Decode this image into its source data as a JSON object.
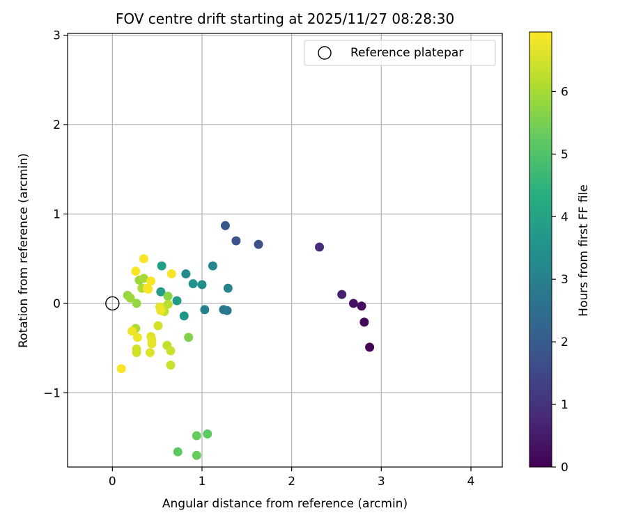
{
  "chart_data": {
    "type": "scatter",
    "title": "FOV centre drift starting at 2025/11/27 08:28:30",
    "xlabel": "Angular distance from reference (arcmin)",
    "ylabel": "Rotation from reference (arcmin)",
    "xlim": [
      -0.5,
      4.35
    ],
    "ylim": [
      -1.83,
      3.02
    ],
    "xticks": [
      0,
      1,
      2,
      3,
      4
    ],
    "xtick_labels": [
      "0",
      "1",
      "2",
      "3",
      "4"
    ],
    "yticks": [
      -1,
      0,
      1,
      2,
      3
    ],
    "ytick_labels": [
      "−1",
      "0",
      "1",
      "2",
      "3"
    ],
    "grid": true,
    "legend": {
      "label": "Reference platepar",
      "placement": "top-right"
    },
    "reference_point": {
      "x": 0,
      "y": 0
    },
    "colorbar": {
      "label": "Hours from first FF file",
      "colormap": "viridis",
      "range": [
        0,
        6.95
      ],
      "ticks": [
        0,
        1,
        2,
        3,
        4,
        5,
        6
      ],
      "tick_labels": [
        "0",
        "1",
        "2",
        "3",
        "4",
        "5",
        "6"
      ]
    },
    "points": [
      {
        "x": 2.87,
        "y": -0.49,
        "c": 0.05
      },
      {
        "x": 2.81,
        "y": -0.21,
        "c": 0.15
      },
      {
        "x": 2.78,
        "y": -0.03,
        "c": 0.25
      },
      {
        "x": 2.69,
        "y": 0.0,
        "c": 0.35
      },
      {
        "x": 2.56,
        "y": 0.1,
        "c": 0.6
      },
      {
        "x": 2.31,
        "y": 0.63,
        "c": 0.9
      },
      {
        "x": 1.63,
        "y": 0.66,
        "c": 1.7
      },
      {
        "x": 1.38,
        "y": 0.7,
        "c": 1.8
      },
      {
        "x": 1.26,
        "y": 0.87,
        "c": 1.9
      },
      {
        "x": 1.28,
        "y": -0.08,
        "c": 2.7
      },
      {
        "x": 1.24,
        "y": -0.07,
        "c": 2.8
      },
      {
        "x": 1.03,
        "y": -0.07,
        "c": 3.0
      },
      {
        "x": 1.29,
        "y": 0.17,
        "c": 3.1
      },
      {
        "x": 1.12,
        "y": 0.42,
        "c": 3.2
      },
      {
        "x": 1.0,
        "y": 0.21,
        "c": 3.4
      },
      {
        "x": 0.82,
        "y": 0.33,
        "c": 3.3
      },
      {
        "x": 0.9,
        "y": 0.22,
        "c": 3.5
      },
      {
        "x": 0.8,
        "y": -0.14,
        "c": 3.6
      },
      {
        "x": 0.72,
        "y": 0.03,
        "c": 3.7
      },
      {
        "x": 0.54,
        "y": 0.13,
        "c": 3.8
      },
      {
        "x": 0.55,
        "y": 0.42,
        "c": 3.9
      },
      {
        "x": 0.73,
        "y": -1.66,
        "c": 5.2
      },
      {
        "x": 0.94,
        "y": -1.7,
        "c": 5.3
      },
      {
        "x": 1.06,
        "y": -1.46,
        "c": 5.2
      },
      {
        "x": 0.94,
        "y": -1.48,
        "c": 5.3
      },
      {
        "x": 0.85,
        "y": -0.38,
        "c": 5.6
      },
      {
        "x": 0.62,
        "y": 0.08,
        "c": 5.7
      },
      {
        "x": 0.27,
        "y": 0.0,
        "c": 5.8
      },
      {
        "x": 0.17,
        "y": 0.09,
        "c": 5.8
      },
      {
        "x": 0.2,
        "y": 0.06,
        "c": 5.9
      },
      {
        "x": 0.3,
        "y": 0.26,
        "c": 5.9
      },
      {
        "x": 0.35,
        "y": 0.28,
        "c": 6.0
      },
      {
        "x": 0.33,
        "y": 0.17,
        "c": 6.1
      },
      {
        "x": 0.26,
        "y": -0.28,
        "c": 6.1
      },
      {
        "x": 0.62,
        "y": -0.01,
        "c": 6.2
      },
      {
        "x": 0.58,
        "y": -0.09,
        "c": 6.3
      },
      {
        "x": 0.61,
        "y": -0.47,
        "c": 6.3
      },
      {
        "x": 0.65,
        "y": -0.53,
        "c": 6.4
      },
      {
        "x": 0.65,
        "y": -0.69,
        "c": 6.4
      },
      {
        "x": 0.51,
        "y": -0.25,
        "c": 6.5
      },
      {
        "x": 0.27,
        "y": -0.51,
        "c": 6.5
      },
      {
        "x": 0.27,
        "y": -0.55,
        "c": 6.5
      },
      {
        "x": 0.42,
        "y": -0.55,
        "c": 6.6
      },
      {
        "x": 0.43,
        "y": -0.37,
        "c": 6.6
      },
      {
        "x": 0.44,
        "y": -0.41,
        "c": 6.7
      },
      {
        "x": 0.44,
        "y": -0.45,
        "c": 6.7
      },
      {
        "x": 0.53,
        "y": -0.04,
        "c": 6.7
      },
      {
        "x": 0.54,
        "y": -0.08,
        "c": 6.8
      },
      {
        "x": 0.22,
        "y": -0.31,
        "c": 6.8
      },
      {
        "x": 0.28,
        "y": -0.38,
        "c": 6.8
      },
      {
        "x": 0.1,
        "y": -0.73,
        "c": 6.9
      },
      {
        "x": 0.26,
        "y": 0.36,
        "c": 6.9
      },
      {
        "x": 0.35,
        "y": 0.5,
        "c": 6.9
      },
      {
        "x": 0.39,
        "y": 0.17,
        "c": 6.9
      },
      {
        "x": 0.4,
        "y": 0.16,
        "c": 6.9
      },
      {
        "x": 0.43,
        "y": 0.25,
        "c": 6.9
      },
      {
        "x": 0.66,
        "y": 0.33,
        "c": 6.9
      }
    ]
  }
}
